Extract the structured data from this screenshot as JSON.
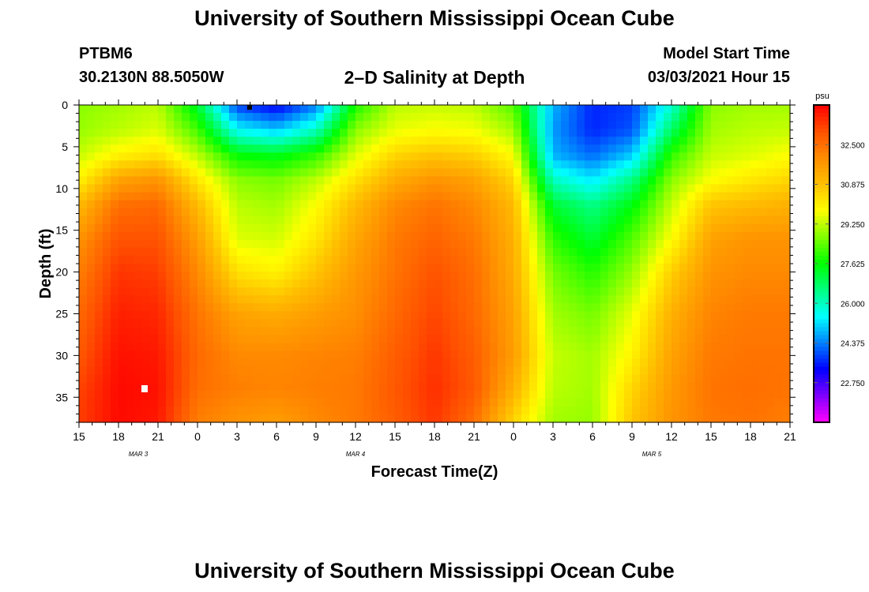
{
  "header": {
    "title": "University of Southern Mississippi Ocean Cube",
    "station": "PTBM6",
    "coords": "30.2130N 88.5050W",
    "subtitle": "2–D Salinity at Depth",
    "start_label": "Model Start Time",
    "start_value": "03/03/2021 Hour 15"
  },
  "footer": {
    "title": "University of Southern Mississippi Ocean Cube"
  },
  "chart_data": {
    "type": "heatmap",
    "title": "2–D Salinity at Depth",
    "xlabel": "Forecast Time(Z)",
    "ylabel": "Depth (ft)",
    "x_tick_labels": [
      "15",
      "18",
      "21",
      "0",
      "3",
      "6",
      "9",
      "12",
      "15",
      "18",
      "21",
      "0",
      "3",
      "6",
      "9",
      "12",
      "15",
      "18",
      "21"
    ],
    "x_range_hours": [
      0,
      54
    ],
    "date_labels": [
      {
        "label": "MAR 3",
        "hour": 4.5
      },
      {
        "label": "MAR 4",
        "hour": 21
      },
      {
        "label": "MAR 5",
        "hour": 43.5
      }
    ],
    "y_ticks": [
      0,
      5,
      10,
      15,
      20,
      25,
      30,
      35
    ],
    "ylim": [
      0,
      38
    ],
    "y_inverted": true,
    "colorbar": {
      "unit": "psu",
      "range": [
        21.125,
        34.125
      ],
      "tick_values": [
        32.5,
        30.875,
        29.25,
        27.625,
        26.0,
        24.375,
        22.75
      ],
      "tick_labels": [
        "32.500",
        "30.875",
        "29.250",
        "27.625",
        "26.000",
        "24.375",
        "22.750"
      ],
      "colors": [
        "#ff00ff",
        "#8000ff",
        "#0000ff",
        "#0080ff",
        "#00ffff",
        "#00ff80",
        "#00ff00",
        "#80ff00",
        "#ffff00",
        "#ffc000",
        "#ff8c00",
        "#ff5000",
        "#ff0000"
      ]
    },
    "grid_hours": [
      0,
      3,
      6,
      9,
      12,
      15,
      18,
      21,
      24,
      27,
      30,
      33,
      36,
      39,
      42,
      45,
      48,
      51,
      54
    ],
    "grid_depths": [
      0,
      3,
      6,
      9,
      12,
      16,
      20,
      25,
      30,
      34,
      38
    ],
    "salinity": [
      [
        28.8,
        29.0,
        29.2,
        27.2,
        23.8,
        23.2,
        24.3,
        27.8,
        29.2,
        29.3,
        29.2,
        28.3,
        24.8,
        23.6,
        23.8,
        25.8,
        28.8,
        29.0,
        29.0
      ],
      [
        28.9,
        29.2,
        29.5,
        28.2,
        25.5,
        25.0,
        26.0,
        28.8,
        29.6,
        29.8,
        29.7,
        29.0,
        24.6,
        23.6,
        24.0,
        26.8,
        29.0,
        29.2,
        29.3
      ],
      [
        29.3,
        30.0,
        30.3,
        29.2,
        27.6,
        27.4,
        28.0,
        29.5,
        30.5,
        30.8,
        30.6,
        29.8,
        24.8,
        24.2,
        25.0,
        28.0,
        29.3,
        29.5,
        29.8
      ],
      [
        30.0,
        31.5,
        31.8,
        30.2,
        28.8,
        28.6,
        29.2,
        30.3,
        31.3,
        31.8,
        31.5,
        30.5,
        26.0,
        25.3,
        26.5,
        28.8,
        29.8,
        30.2,
        30.5
      ],
      [
        31.0,
        32.5,
        32.6,
        31.0,
        29.2,
        29.0,
        29.8,
        31.0,
        32.0,
        32.4,
        32.0,
        31.0,
        27.2,
        26.5,
        27.5,
        29.3,
        30.8,
        31.0,
        31.2
      ],
      [
        31.8,
        33.0,
        33.0,
        31.6,
        29.5,
        29.4,
        30.2,
        31.4,
        32.3,
        32.7,
        32.3,
        31.2,
        28.0,
        27.2,
        28.3,
        29.8,
        31.5,
        31.8,
        31.8
      ],
      [
        32.2,
        33.4,
        33.3,
        32.0,
        30.3,
        30.0,
        30.8,
        31.7,
        32.4,
        33.0,
        32.5,
        31.3,
        28.6,
        27.9,
        28.9,
        30.6,
        31.8,
        32.0,
        32.0
      ],
      [
        32.6,
        33.7,
        33.6,
        32.4,
        31.5,
        31.3,
        31.6,
        31.9,
        32.6,
        33.2,
        32.6,
        31.5,
        29.0,
        28.6,
        29.6,
        31.2,
        32.1,
        32.3,
        32.3
      ],
      [
        32.9,
        33.9,
        33.8,
        32.6,
        32.0,
        32.0,
        32.1,
        32.2,
        32.8,
        33.4,
        32.8,
        31.6,
        29.3,
        29.0,
        30.0,
        31.5,
        32.3,
        32.4,
        32.4
      ],
      [
        33.2,
        34.0,
        33.9,
        32.5,
        32.2,
        32.1,
        32.2,
        32.3,
        32.9,
        33.5,
        32.9,
        31.2,
        29.2,
        29.0,
        30.5,
        31.7,
        32.4,
        32.5,
        32.4
      ],
      [
        33.3,
        34.0,
        33.8,
        32.2,
        31.8,
        31.6,
        32.0,
        32.3,
        32.8,
        33.4,
        32.5,
        30.5,
        29.0,
        28.9,
        30.8,
        31.8,
        32.3,
        32.4,
        32.2
      ]
    ]
  }
}
